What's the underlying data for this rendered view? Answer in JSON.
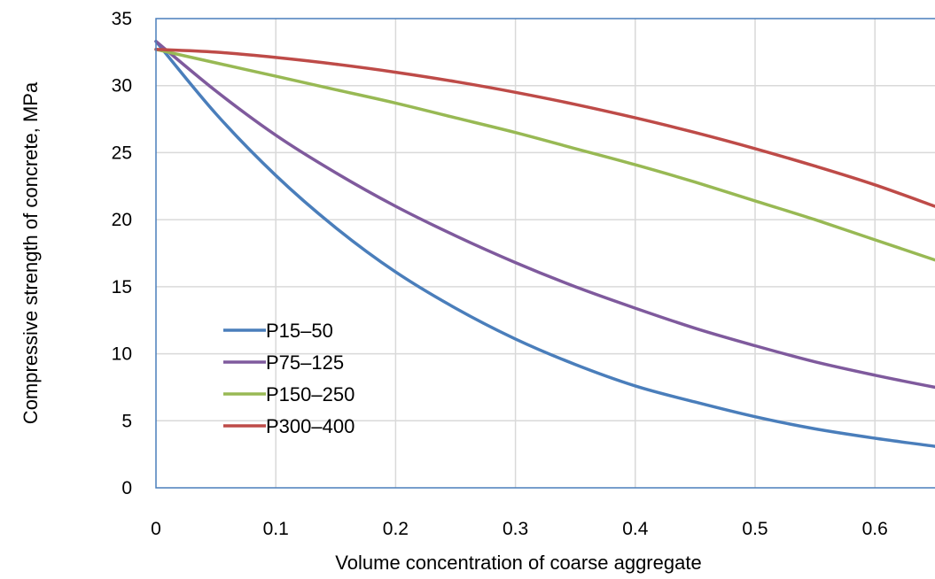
{
  "chart_data": {
    "type": "line",
    "title": "",
    "xlabel": "Volume concentration of coarse aggregate",
    "ylabel": "Compressive strength of concrete, MPa",
    "xlim": [
      0,
      0.65
    ],
    "ylim": [
      0,
      35
    ],
    "xticks": [
      0,
      0.1,
      0.2,
      0.3,
      0.4,
      0.5,
      0.6
    ],
    "xtick_labels": [
      "0",
      "0.1",
      "0.2",
      "0.3",
      "0.4",
      "0.5",
      "0.6"
    ],
    "yticks": [
      0,
      5,
      10,
      15,
      20,
      25,
      30,
      35
    ],
    "ytick_labels": [
      "0",
      "5",
      "10",
      "15",
      "20",
      "25",
      "30",
      "35"
    ],
    "grid": true,
    "legend_position": "lower-left",
    "x": [
      0,
      0.05,
      0.1,
      0.15,
      0.2,
      0.25,
      0.3,
      0.35,
      0.4,
      0.45,
      0.5,
      0.55,
      0.6,
      0.65
    ],
    "series": [
      {
        "name": "P15–50",
        "color": "#4a7ebb",
        "values": [
          33.3,
          27.9,
          23.3,
          19.4,
          16.1,
          13.4,
          11.1,
          9.2,
          7.6,
          6.4,
          5.3,
          4.4,
          3.7,
          3.1
        ]
      },
      {
        "name": "P75–125",
        "color": "#7f5a9d",
        "values": [
          33.3,
          29.6,
          26.3,
          23.5,
          21.0,
          18.8,
          16.8,
          15.0,
          13.4,
          11.9,
          10.6,
          9.4,
          8.4,
          7.5
        ]
      },
      {
        "name": "P150–250",
        "color": "#98b954",
        "values": [
          32.7,
          31.7,
          30.7,
          29.7,
          28.7,
          27.6,
          26.5,
          25.3,
          24.1,
          22.8,
          21.4,
          20.0,
          18.5,
          17.0
        ]
      },
      {
        "name": "P300–400",
        "color": "#be4b48",
        "values": [
          32.7,
          32.5,
          32.1,
          31.6,
          31.0,
          30.3,
          29.5,
          28.6,
          27.6,
          26.5,
          25.3,
          24.0,
          22.6,
          21.0
        ]
      }
    ]
  }
}
